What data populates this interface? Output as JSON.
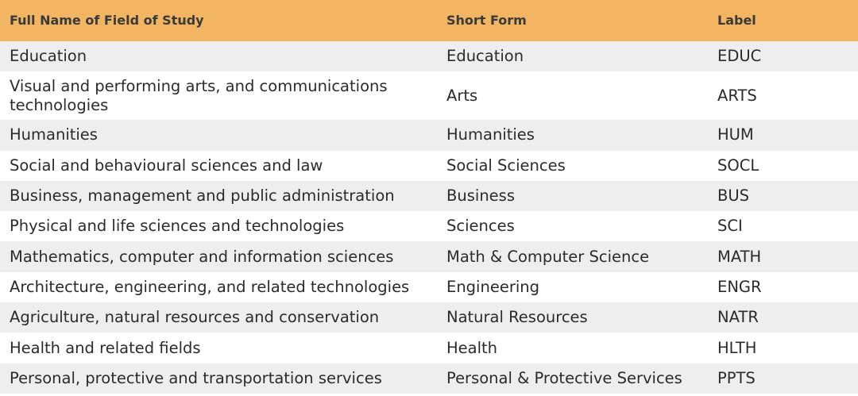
{
  "table": {
    "headers": {
      "full_name": "Full Name of Field of Study",
      "short_form": "Short Form",
      "label": "Label"
    },
    "rows": [
      {
        "full_name": "Education",
        "short_form": "Education",
        "label": "EDUC"
      },
      {
        "full_name": "Visual and performing arts, and communications technologies",
        "short_form": "Arts",
        "label": "ARTS"
      },
      {
        "full_name": "Humanities",
        "short_form": "Humanities",
        "label": "HUM"
      },
      {
        "full_name": "Social and behavioural sciences and law",
        "short_form": "Social Sciences",
        "label": "SOCL"
      },
      {
        "full_name": "Business, management and public administration",
        "short_form": "Business",
        "label": "BUS"
      },
      {
        "full_name": "Physical and life sciences and technologies",
        "short_form": "Sciences",
        "label": "SCI"
      },
      {
        "full_name": "Mathematics, computer and information sciences",
        "short_form": "Math & Computer Science",
        "label": "MATH"
      },
      {
        "full_name": "Architecture, engineering, and related technologies",
        "short_form": "Engineering",
        "label": "ENGR"
      },
      {
        "full_name": "Agriculture, natural resources and conservation",
        "short_form": "Natural Resources",
        "label": "NATR"
      },
      {
        "full_name": "Health and related fields",
        "short_form": "Health",
        "label": "HLTH"
      },
      {
        "full_name": "Personal, protective and transportation services",
        "short_form": "Personal & Protective Services",
        "label": "PPTS"
      }
    ]
  },
  "colors": {
    "header_bg": "#f2b562",
    "stripe_bg": "#eeeeee",
    "text": "#2b2b2b"
  }
}
